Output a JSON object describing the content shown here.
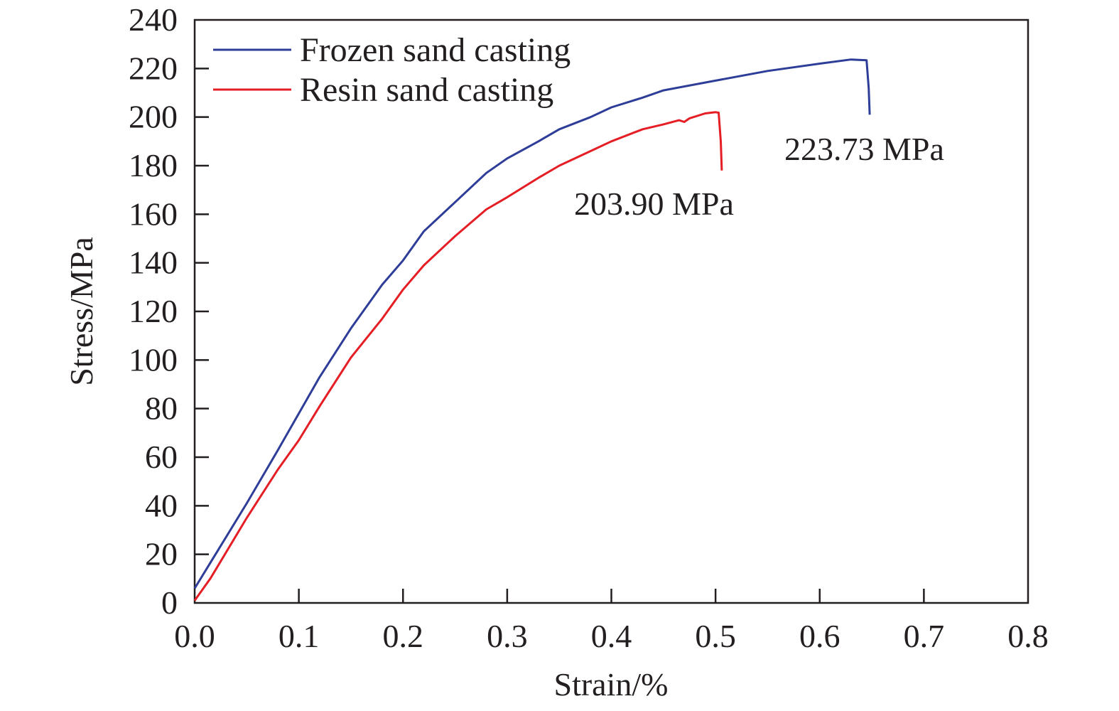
{
  "chart_data": {
    "type": "line",
    "xlabel": "Strain/%",
    "ylabel": "Stress/MPa",
    "xlim": [
      0.0,
      0.8
    ],
    "ylim": [
      0,
      240
    ],
    "x_ticks": [
      "0.0",
      "0.1",
      "0.2",
      "0.3",
      "0.4",
      "0.5",
      "0.6",
      "0.7",
      "0.8"
    ],
    "y_ticks": [
      "0",
      "20",
      "40",
      "60",
      "80",
      "100",
      "120",
      "140",
      "160",
      "180",
      "200",
      "220",
      "240"
    ],
    "grid": false,
    "legend_position": "top-left",
    "series": [
      {
        "name": "Frozen sand casting",
        "color": "#2e3d98",
        "points": [
          [
            0.0,
            6
          ],
          [
            0.02,
            20
          ],
          [
            0.05,
            41
          ],
          [
            0.08,
            63
          ],
          [
            0.1,
            78
          ],
          [
            0.12,
            93
          ],
          [
            0.15,
            113
          ],
          [
            0.18,
            131
          ],
          [
            0.2,
            141
          ],
          [
            0.22,
            153
          ],
          [
            0.25,
            165
          ],
          [
            0.28,
            177
          ],
          [
            0.3,
            183
          ],
          [
            0.33,
            190
          ],
          [
            0.35,
            195
          ],
          [
            0.38,
            200
          ],
          [
            0.4,
            204
          ],
          [
            0.43,
            208
          ],
          [
            0.45,
            211
          ],
          [
            0.5,
            215
          ],
          [
            0.55,
            219
          ],
          [
            0.6,
            222
          ],
          [
            0.63,
            223.7
          ],
          [
            0.645,
            223.4
          ],
          [
            0.647,
            212
          ],
          [
            0.648,
            201
          ]
        ]
      },
      {
        "name": "Resin sand casting",
        "color": "#e51e25",
        "points": [
          [
            0.0,
            1
          ],
          [
            0.015,
            10
          ],
          [
            0.05,
            35
          ],
          [
            0.08,
            55
          ],
          [
            0.1,
            67
          ],
          [
            0.12,
            81
          ],
          [
            0.15,
            101
          ],
          [
            0.18,
            117
          ],
          [
            0.2,
            129
          ],
          [
            0.22,
            139
          ],
          [
            0.25,
            151
          ],
          [
            0.28,
            162
          ],
          [
            0.3,
            167
          ],
          [
            0.33,
            175
          ],
          [
            0.35,
            180
          ],
          [
            0.38,
            186
          ],
          [
            0.4,
            190
          ],
          [
            0.43,
            195
          ],
          [
            0.45,
            197
          ],
          [
            0.465,
            198.7
          ],
          [
            0.47,
            198
          ],
          [
            0.475,
            199.5
          ],
          [
            0.49,
            201.5
          ],
          [
            0.5,
            202
          ],
          [
            0.503,
            201.8
          ],
          [
            0.505,
            190
          ],
          [
            0.506,
            178
          ]
        ]
      }
    ],
    "annotations": [
      {
        "text": "223.73 MPa"
      },
      {
        "text": "203.90 MPa"
      }
    ]
  }
}
